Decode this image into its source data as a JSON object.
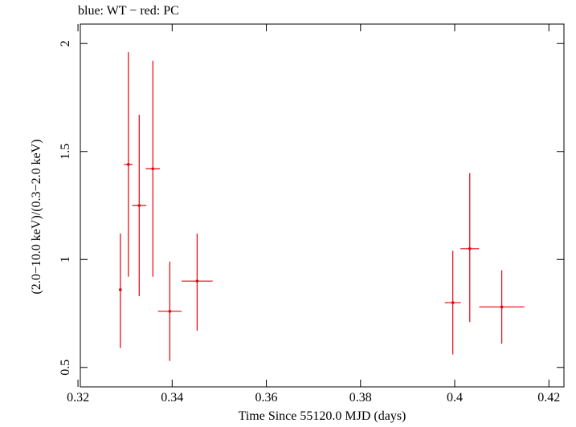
{
  "chart_data": {
    "type": "scatter",
    "title": "blue: WT − red: PC",
    "xlabel": "Time Since 55120.0 MJD (days)",
    "ylabel": "(2.0−10.0 keV)/(0.3−2.0 keV)",
    "xlim": [
      0.3205,
      0.4232
    ],
    "ylim": [
      0.41,
      2.09
    ],
    "xticks": [
      0.32,
      0.34,
      0.36,
      0.38,
      0.4,
      0.42
    ],
    "xtick_labels": [
      "0.32",
      "0.34",
      "0.36",
      "0.38",
      "0.4",
      "0.42"
    ],
    "yticks": [
      0.5,
      1,
      1.5,
      2
    ],
    "ytick_labels": [
      "0.5",
      "1",
      "1.5",
      "2"
    ],
    "grid": false,
    "series": [
      {
        "color": "#e8000b",
        "points": [
          {
            "x": 0.329,
            "y": 0.86,
            "xerr": 0.0003,
            "ylo": 0.59,
            "yhi": 1.12
          },
          {
            "x": 0.3307,
            "y": 1.44,
            "xerr": 0.0009,
            "ylo": 0.92,
            "yhi": 1.96
          },
          {
            "x": 0.333,
            "y": 1.25,
            "xerr": 0.0015,
            "ylo": 0.83,
            "yhi": 1.67
          },
          {
            "x": 0.3359,
            "y": 1.42,
            "xerr": 0.0015,
            "ylo": 0.92,
            "yhi": 1.92
          },
          {
            "x": 0.3395,
            "y": 0.76,
            "xerr": 0.0025,
            "ylo": 0.53,
            "yhi": 0.99
          },
          {
            "x": 0.3453,
            "y": 0.9,
            "xerr": 0.0033,
            "ylo": 0.67,
            "yhi": 1.12
          },
          {
            "x": 0.3996,
            "y": 0.8,
            "xerr": 0.0017,
            "ylo": 0.56,
            "yhi": 1.04
          },
          {
            "x": 0.4032,
            "y": 1.05,
            "xerr": 0.002,
            "ylo": 0.71,
            "yhi": 1.4
          },
          {
            "x": 0.41,
            "y": 0.78,
            "xerr": 0.0048,
            "ylo": 0.61,
            "yhi": 0.95
          }
        ]
      }
    ]
  }
}
